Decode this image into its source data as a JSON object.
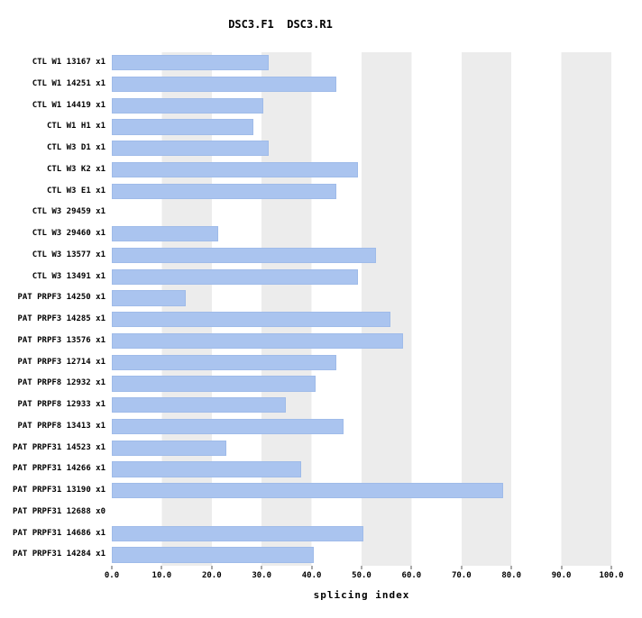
{
  "title": "DSC3.F1  DSC3.R1",
  "chart_data": {
    "type": "bar",
    "orientation": "horizontal",
    "title": "DSC3.F1  DSC3.R1",
    "xlabel": "splicing index",
    "ylabel": "",
    "xlim": [
      0,
      100
    ],
    "xticks": [
      0,
      10,
      20,
      30,
      40,
      50,
      60,
      70,
      80,
      90,
      100
    ],
    "xtick_labels": [
      "0.0",
      "10.0",
      "20.0",
      "30.0",
      "40.0",
      "50.0",
      "60.0",
      "70.0",
      "80.0",
      "90.0",
      "100.0"
    ],
    "grid": "alternating vertical stripes",
    "stripe_color": "#ececec",
    "bar_color": "#aac4ef",
    "categories": [
      "CTL W1 13167 x1",
      "CTL W1 14251 x1",
      "CTL W1 14419 x1",
      "CTL W1 H1 x1",
      "CTL W3 D1 x1",
      "CTL W3 K2 x1",
      "CTL W3 E1 x1",
      "CTL W3 29459 x1",
      "CTL W3 29460 x1",
      "CTL W3 13577 x1",
      "CTL W3 13491 x1",
      "PAT PRPF3 14250 x1",
      "PAT PRPF3 14285 x1",
      "PAT PRPF3 13576 x1",
      "PAT PRPF3 12714 x1",
      "PAT PRPF8 12932 x1",
      "PAT PRPF8 12933 x1",
      "PAT PRPF8 13413 x1",
      "PAT PRPF31 14523 x1",
      "PAT PRPF31 14266 x1",
      "PAT PRPF31 13190 x1",
      "PAT PRPF31 12688 x0",
      "PAT PRPF31 14686 x1",
      "PAT PRPF31 14284 x1"
    ],
    "values": [
      31,
      44.5,
      30,
      28,
      31,
      49,
      44.5,
      0,
      21,
      52.5,
      49,
      14.5,
      55.5,
      58,
      44.5,
      40.5,
      34.5,
      46,
      22.5,
      37.5,
      78,
      0,
      50,
      40
    ]
  }
}
